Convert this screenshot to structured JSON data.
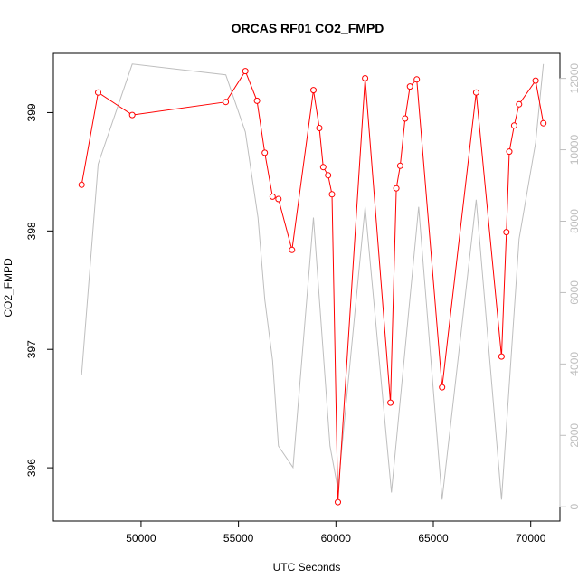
{
  "chart_data": {
    "type": "line",
    "title": "ORCAS RF01 CO2_FMPD",
    "xlabel": "UTC Seconds",
    "ylabel": "CO2_FMPD",
    "xlim": [
      45500,
      71500
    ],
    "ylim": [
      395.55,
      399.5
    ],
    "y2lim": [
      -400,
      12700
    ],
    "x_ticks": [
      50000,
      55000,
      60000,
      65000,
      70000
    ],
    "x_tick_labels": [
      "50000",
      "55000",
      "60000",
      "65000",
      "70000"
    ],
    "y_ticks": [
      396,
      397,
      398,
      399
    ],
    "y_tick_labels": [
      "396",
      "397",
      "398",
      "399"
    ],
    "y2_ticks": [
      0,
      2000,
      4000,
      6000,
      8000,
      10000,
      12000
    ],
    "y2_tick_labels": [
      "0",
      "2000",
      "4000",
      "6000",
      "8000",
      "10000",
      "12000"
    ],
    "grid": false,
    "colors": {
      "primary": "#ff0000",
      "secondary": "#bebebe"
    },
    "series": [
      {
        "axis": "left",
        "marker": "open-circle",
        "color": "#ff0000",
        "x": [
          46950,
          47800,
          49550,
          54350,
          55350,
          55950,
          56350,
          56750,
          57050,
          57750,
          58850,
          59150,
          59350,
          59600,
          59800,
          60100,
          61500,
          62800,
          63100,
          63300,
          63550,
          63800,
          64150,
          65450,
          67200,
          68500,
          68750,
          68900,
          69150,
          69400,
          70250,
          70650
        ],
        "y": [
          398.39,
          399.17,
          398.98,
          399.09,
          399.35,
          399.1,
          398.66,
          398.29,
          398.27,
          397.84,
          399.19,
          398.87,
          398.54,
          398.47,
          398.31,
          395.71,
          399.29,
          396.55,
          398.36,
          398.55,
          398.95,
          399.22,
          399.28,
          396.68,
          399.17,
          396.94,
          397.99,
          398.67,
          398.89,
          399.07,
          399.27,
          398.91
        ]
      },
      {
        "axis": "right",
        "marker": "none",
        "color": "#bebebe",
        "x": [
          46950,
          47800,
          49550,
          54350,
          55350,
          56000,
          56350,
          56750,
          57050,
          57800,
          58850,
          59700,
          60100,
          61500,
          62850,
          64250,
          65450,
          67200,
          68500,
          69400,
          70250,
          70650
        ],
        "y": [
          3700,
          9600,
          12400,
          12100,
          10500,
          8100,
          5800,
          4100,
          1700,
          1100,
          8100,
          1700,
          500,
          8400,
          400,
          8400,
          200,
          8600,
          200,
          7500,
          10200,
          12400
        ]
      }
    ]
  }
}
